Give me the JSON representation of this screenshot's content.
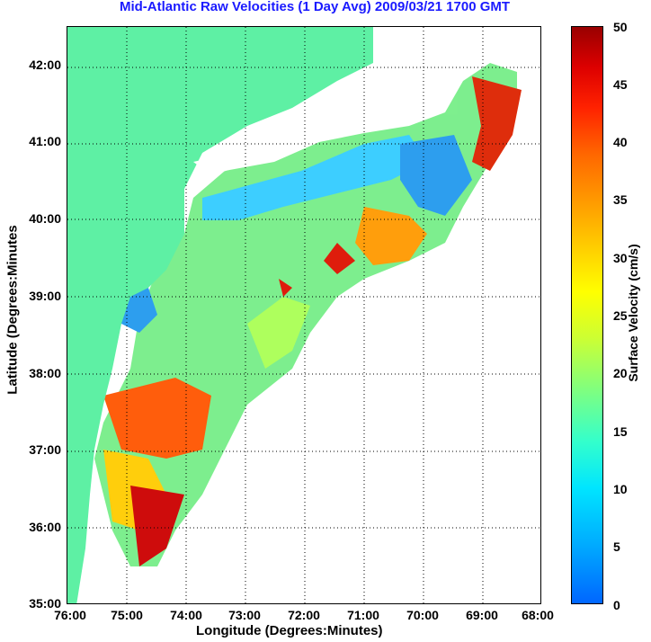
{
  "title": "Mid-Atlantic Raw Velocities (1 Day Avg) 2009/03/21 1700 GMT",
  "x_axis": {
    "title": "Longitude (Degrees:Minutes)",
    "ticks": [
      "76:00",
      "75:00",
      "74:00",
      "73:00",
      "72:00",
      "71:00",
      "70:00",
      "69:00",
      "68:00"
    ]
  },
  "y_axis": {
    "title": "Latitude (Degrees:Minutes",
    "ticks": [
      "42:00",
      "41:00",
      "40:00",
      "39:00",
      "38:00",
      "37:00",
      "36:00",
      "35:00"
    ]
  },
  "colorbar": {
    "title": "Surface Velocity (cm/s)",
    "ticks": [
      "50",
      "45",
      "40",
      "35",
      "30",
      "25",
      "20",
      "15",
      "10",
      "5",
      "0"
    ]
  },
  "colors": {
    "land": "#5ef0a4",
    "title": "#1a1aff",
    "water_bg": "#ffffff",
    "grid": "#000000"
  }
}
